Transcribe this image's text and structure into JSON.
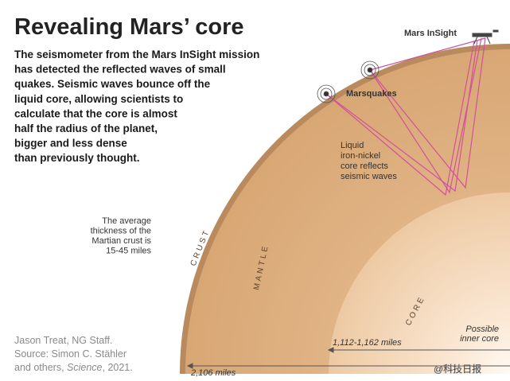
{
  "title": "Revealing Mars’ core",
  "description": [
    "The seismometer from the Mars InSight mission",
    "has detected the reflected waves of small",
    "quakes. Seismic waves bounce off the",
    "liquid core, allowing scientists to",
    "calculate that the core is almost",
    "half the radius of the planet,",
    "bigger and less dense",
    "than previously thought."
  ],
  "labels": {
    "insight": "Mars InSight",
    "marsquakes": "Marsquakes",
    "core_note": [
      "Liquid",
      "iron-nickel",
      "core reflects",
      "seismic waves"
    ],
    "crust_note": [
      "The average",
      "thickness of the",
      "Martian crust is",
      "15-45 miles"
    ],
    "crust": "CRUST",
    "mantle": "MANTLE",
    "core": "CORE",
    "inner_core": [
      "Possible",
      "inner core"
    ],
    "core_radius": "1,112-1,162 miles",
    "mars_radius": "2,106 miles"
  },
  "credit": [
    "Jason Treat, NG Staff.",
    "Source: Simon C. Stähler",
    "and others, ",
    "Science",
    ", 2021."
  ],
  "watermark": "@科技日报"
}
